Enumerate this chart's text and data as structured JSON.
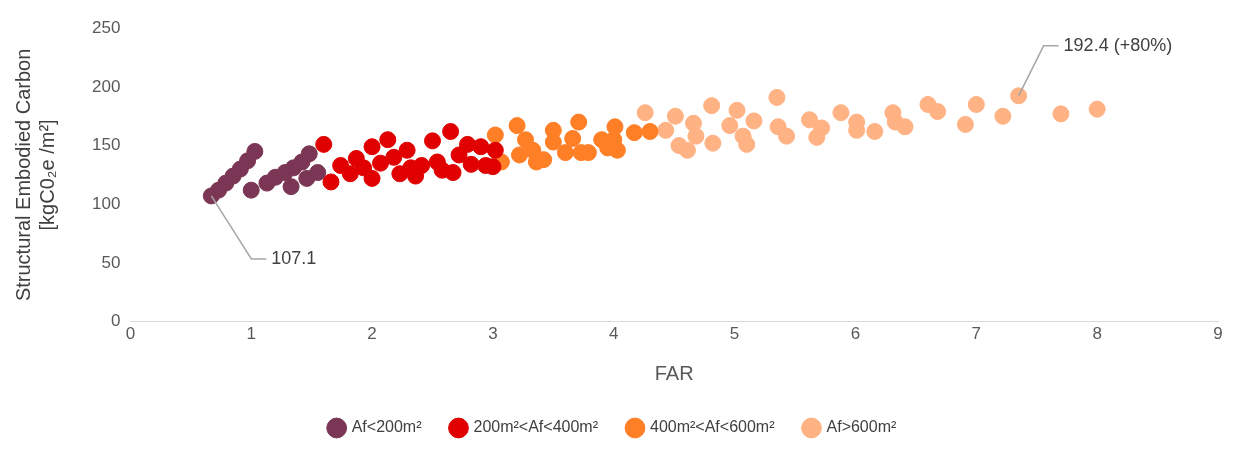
{
  "chart_data": {
    "type": "scatter",
    "xlabel": "FAR",
    "ylabel": "Structural Embodied Carbon [kgC0₂e /m²]",
    "xlim": [
      0,
      9
    ],
    "xticks": [
      0,
      1,
      2,
      3,
      4,
      5,
      6,
      7,
      8,
      9
    ],
    "ylim": [
      0,
      250
    ],
    "yticks": [
      0,
      50,
      100,
      150,
      200,
      250
    ],
    "grid": false,
    "legend": "bottom",
    "marker": "circle",
    "annotations": [
      {
        "text": "107.1",
        "x": 0.67,
        "y": 107.1
      },
      {
        "text": "192.4 (+80%)",
        "x": 7.35,
        "y": 192.4
      }
    ],
    "series": [
      {
        "name": "Af<200m²",
        "color": "#7b3656",
        "x": [
          0.67,
          0.73,
          0.79,
          0.85,
          0.91,
          0.97,
          1.03,
          1.0,
          1.13,
          1.2,
          1.28,
          1.35,
          1.42,
          1.48,
          1.33,
          1.46,
          1.55
        ],
        "values": [
          107.1,
          112,
          118,
          124,
          130,
          137,
          145,
          112,
          118,
          123,
          127,
          131,
          136,
          143,
          115,
          122,
          127
        ]
      },
      {
        "name": "200m²<Af<400m²",
        "color": "#e00000",
        "x": [
          1.6,
          1.66,
          1.74,
          1.82,
          1.87,
          1.93,
          2.0,
          2.0,
          2.07,
          2.13,
          2.18,
          2.23,
          2.29,
          2.32,
          2.36,
          2.41,
          2.5,
          2.54,
          2.58,
          2.65,
          2.67,
          2.72,
          2.79,
          2.82,
          2.9,
          2.94,
          3.02,
          3.0
        ],
        "values": [
          151,
          119,
          133,
          126,
          139,
          131,
          149,
          122,
          135,
          155,
          140,
          126,
          146,
          131,
          124,
          133,
          154,
          136,
          129,
          162,
          127,
          142,
          151,
          134,
          149,
          133,
          146,
          132
        ]
      },
      {
        "name": "400m²<Af<600m²",
        "color": "#ff7f27",
        "x": [
          3.02,
          3.07,
          3.2,
          3.22,
          3.27,
          3.33,
          3.36,
          3.42,
          3.5,
          3.5,
          3.6,
          3.66,
          3.71,
          3.73,
          3.79,
          3.9,
          4.01,
          4.03,
          4.17,
          4.3,
          3.95,
          4.0
        ],
        "values": [
          159,
          136,
          167,
          142,
          155,
          146,
          136,
          138,
          153,
          163,
          144,
          156,
          170,
          144,
          144,
          155,
          166,
          146,
          161,
          162,
          148,
          155
        ]
      },
      {
        "name": "Af>600m²",
        "color": "#ffb283",
        "x": [
          4.26,
          4.43,
          4.51,
          4.54,
          4.61,
          4.66,
          4.68,
          4.81,
          4.82,
          4.96,
          5.02,
          5.07,
          5.1,
          5.16,
          5.35,
          5.36,
          5.43,
          5.62,
          5.68,
          5.72,
          5.88,
          6.01,
          6.01,
          6.16,
          6.31,
          6.33,
          6.41,
          6.6,
          6.68,
          6.91,
          7.0,
          7.22,
          7.35,
          7.7,
          8.0
        ],
        "values": [
          178,
          163,
          175,
          150,
          146,
          169,
          158,
          184,
          152,
          167,
          180,
          158,
          151,
          171,
          191,
          166,
          158,
          172,
          157,
          165,
          178,
          170,
          163,
          162,
          178,
          170,
          166,
          185,
          179,
          168,
          185,
          175,
          192.4,
          177,
          181
        ]
      }
    ]
  }
}
